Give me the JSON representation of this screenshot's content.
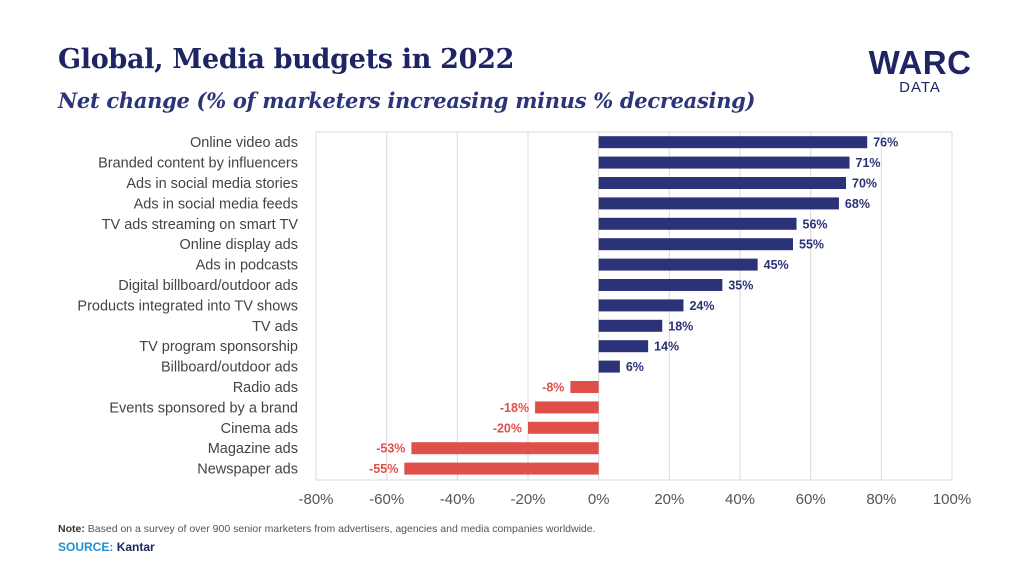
{
  "header": {
    "title": "Global, Media budgets in 2022",
    "subtitle": "Net change (% of marketers increasing minus % decreasing)"
  },
  "logo": {
    "main": "WARC",
    "sub": "DATA"
  },
  "footer": {
    "note_label": "Note:",
    "note_text": "Based on a survey of over 900 senior marketers from advertisers, agencies and media companies worldwide.",
    "source_label": "SOURCE:",
    "source_value": "Kantar"
  },
  "colors": {
    "positive": "#2c3277",
    "negative": "#e0504a",
    "title": "#1e2464",
    "grid": "#d9d9d9"
  },
  "chart_data": {
    "type": "bar",
    "orientation": "horizontal",
    "title": "Global, Media budgets in 2022",
    "subtitle": "Net change (% of marketers increasing minus % decreasing)",
    "categories": [
      "Online video ads",
      "Branded content by influencers",
      "Ads in social media stories",
      "Ads in social media feeds",
      "TV ads streaming on smart TV",
      "Online display ads",
      "Ads in podcasts",
      "Digital billboard/outdoor ads",
      "Products integrated into TV shows",
      "TV ads",
      "TV program sponsorship",
      "Billboard/outdoor ads",
      "Radio ads",
      "Events sponsored by a brand",
      "Cinema ads",
      "Magazine ads",
      "Newspaper ads"
    ],
    "values": [
      76,
      71,
      70,
      68,
      56,
      55,
      45,
      35,
      24,
      18,
      14,
      6,
      -8,
      -18,
      -20,
      -53,
      -55
    ],
    "value_labels": [
      "76%",
      "71%",
      "70%",
      "68%",
      "56%",
      "55%",
      "45%",
      "35%",
      "24%",
      "18%",
      "14%",
      "6%",
      "-8%",
      "-18%",
      "-20%",
      "-53%",
      "-55%"
    ],
    "xlim": [
      -80,
      100
    ],
    "xticks": [
      -80,
      -60,
      -40,
      -20,
      0,
      20,
      40,
      60,
      80,
      100
    ],
    "xtick_labels": [
      "-80%",
      "-60%",
      "-40%",
      "-20%",
      "0%",
      "20%",
      "40%",
      "60%",
      "80%",
      "100%"
    ],
    "xlabel": "",
    "ylabel": "",
    "grid": true,
    "legend": "none"
  }
}
